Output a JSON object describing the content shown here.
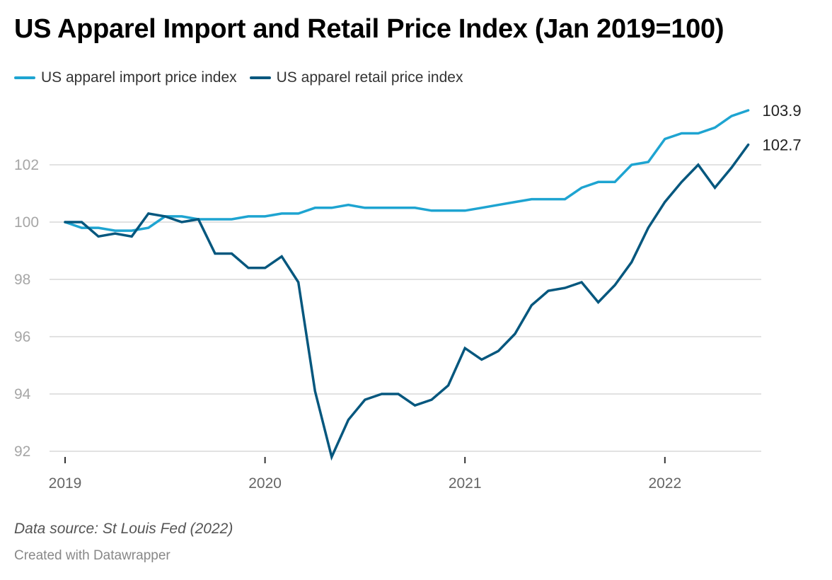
{
  "title": "US Apparel Import and Retail Price Index (Jan 2019=100)",
  "legend": {
    "items": [
      {
        "label": "US apparel import price index",
        "color": "#1ea4d1"
      },
      {
        "label": "US apparel retail price index",
        "color": "#05577e"
      }
    ]
  },
  "footer": {
    "source": "Data source: St Louis Fed (2022)",
    "credit": "Created with Datawrapper"
  },
  "chart_data": {
    "type": "line",
    "title": "US Apparel Import and Retail Price Index (Jan 2019=100)",
    "xlabel": "",
    "ylabel": "",
    "x_start": "2019-01",
    "x_end": "2022-06",
    "x_frequency": "monthly",
    "x_ticks": [
      "2019",
      "2020",
      "2021",
      "2022"
    ],
    "y_ticks": [
      92,
      94,
      96,
      98,
      100,
      102
    ],
    "ylim": [
      92,
      104
    ],
    "grid": true,
    "legend_position": "top-left",
    "series": [
      {
        "name": "US apparel import price index",
        "color": "#1ea4d1",
        "end_label": "103.9",
        "values": [
          100.0,
          99.8,
          99.8,
          99.7,
          99.7,
          99.8,
          100.2,
          100.2,
          100.1,
          100.1,
          100.1,
          100.2,
          100.2,
          100.3,
          100.3,
          100.5,
          100.5,
          100.6,
          100.5,
          100.5,
          100.5,
          100.5,
          100.4,
          100.4,
          100.4,
          100.5,
          100.6,
          100.7,
          100.8,
          100.8,
          100.8,
          101.2,
          101.4,
          101.4,
          102.0,
          102.1,
          102.9,
          103.1,
          103.1,
          103.3,
          103.7,
          103.9
        ]
      },
      {
        "name": "US apparel retail price index",
        "color": "#05577e",
        "end_label": "102.7",
        "values": [
          100.0,
          100.0,
          99.5,
          99.6,
          99.5,
          100.3,
          100.2,
          100.0,
          100.1,
          98.9,
          98.9,
          98.4,
          98.4,
          98.8,
          97.9,
          94.1,
          91.8,
          93.1,
          93.8,
          94.0,
          94.0,
          93.6,
          93.8,
          94.3,
          95.6,
          95.2,
          95.5,
          96.1,
          97.1,
          97.6,
          97.7,
          97.9,
          97.2,
          97.8,
          98.6,
          99.8,
          100.7,
          101.4,
          102.0,
          101.2,
          101.9,
          102.7
        ]
      }
    ]
  }
}
